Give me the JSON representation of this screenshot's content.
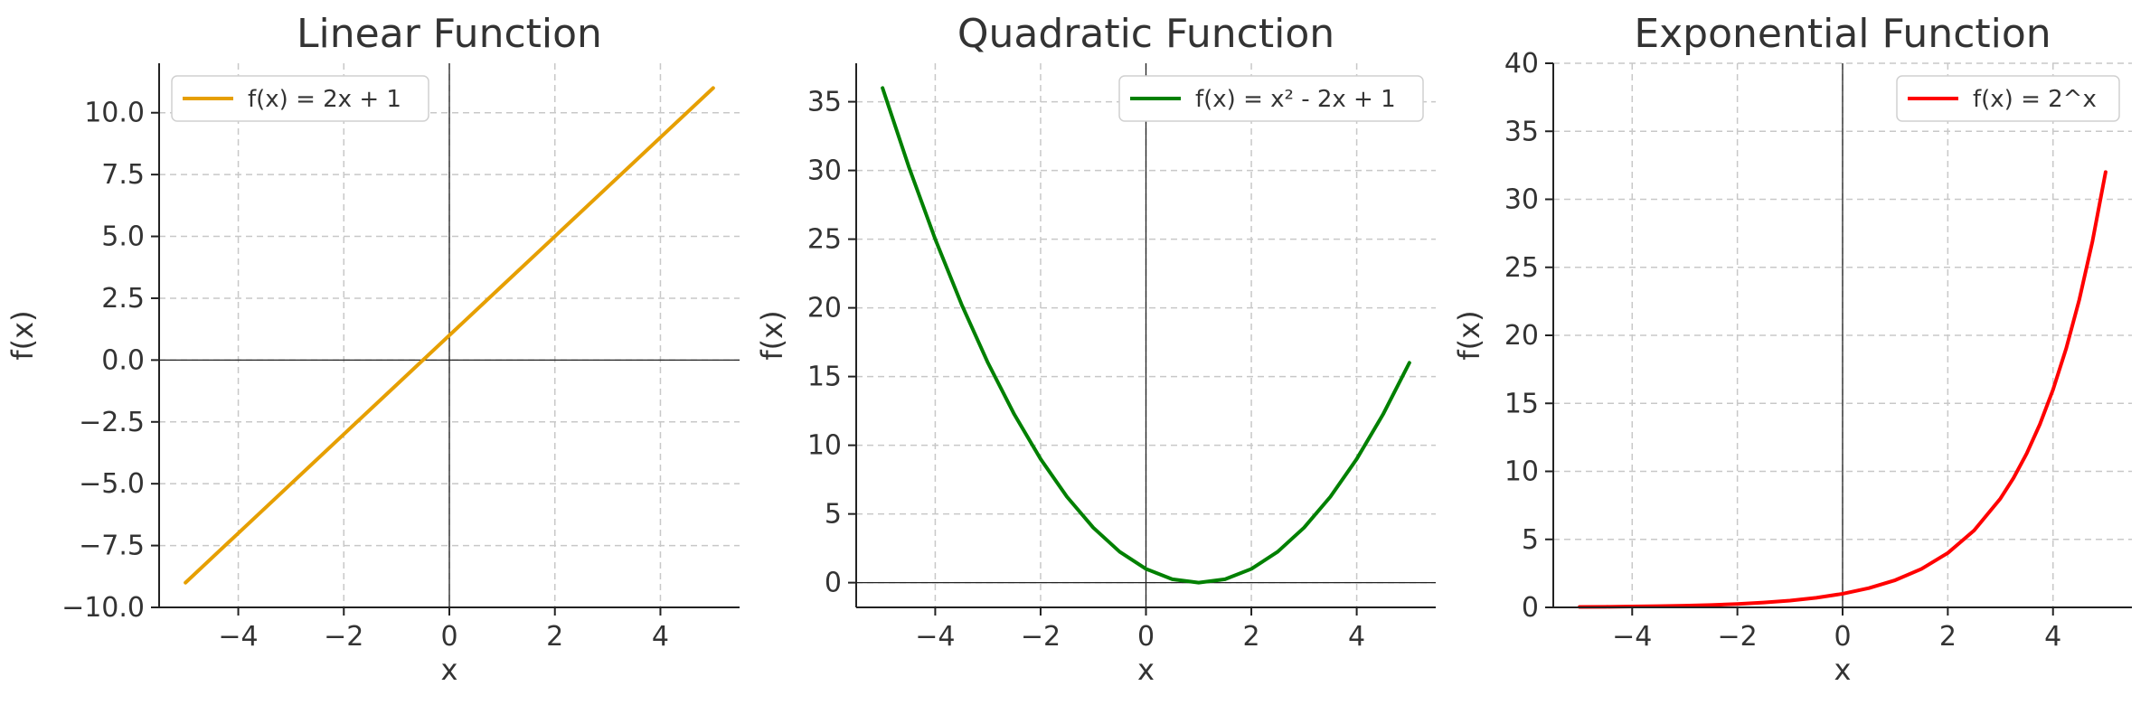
{
  "chart_data": [
    {
      "type": "line",
      "title": "Linear Function",
      "xlabel": "x",
      "ylabel": "f(x)",
      "xlim": [
        -5.5,
        5.5
      ],
      "ylim": [
        -10,
        12
      ],
      "xticks": [
        -4,
        -2,
        0,
        2,
        4
      ],
      "xtick_labels": [
        "−4",
        "−2",
        "0",
        "2",
        "4"
      ],
      "yticks": [
        -10,
        -7.5,
        -5,
        -2.5,
        0,
        2.5,
        5,
        7.5,
        10
      ],
      "ytick_labels": [
        "−10.0",
        "−7.5",
        "−5.0",
        "−2.5",
        "0.0",
        "2.5",
        "5.0",
        "7.5",
        "10.0"
      ],
      "grid": true,
      "legend_position": "top-left",
      "series": [
        {
          "name": "f(x) = 2x + 1",
          "color": "#e69f00",
          "x": [
            -5,
            -4,
            -3,
            -2,
            -1,
            0,
            1,
            2,
            3,
            4,
            5
          ],
          "y": [
            -9,
            -7,
            -5,
            -3,
            -1,
            1,
            3,
            5,
            7,
            9,
            11
          ]
        }
      ]
    },
    {
      "type": "line",
      "title": "Quadratic Function",
      "xlabel": "x",
      "ylabel": "f(x)",
      "xlim": [
        -5.5,
        5.5
      ],
      "ylim": [
        -1.8,
        37.8
      ],
      "xticks": [
        -4,
        -2,
        0,
        2,
        4
      ],
      "xtick_labels": [
        "−4",
        "−2",
        "0",
        "2",
        "4"
      ],
      "yticks": [
        0,
        5,
        10,
        15,
        20,
        25,
        30,
        35
      ],
      "ytick_labels": [
        "0",
        "5",
        "10",
        "15",
        "20",
        "25",
        "30",
        "35"
      ],
      "grid": true,
      "legend_position": "top-right",
      "series": [
        {
          "name": "f(x) = x² - 2x + 1",
          "color": "#008000",
          "x": [
            -5,
            -4.5,
            -4,
            -3.5,
            -3,
            -2.5,
            -2,
            -1.5,
            -1,
            -0.5,
            0,
            0.5,
            1,
            1.5,
            2,
            2.5,
            3,
            3.5,
            4,
            4.5,
            5
          ],
          "y": [
            36,
            30.25,
            25,
            20.25,
            16,
            12.25,
            9,
            6.25,
            4,
            2.25,
            1,
            0.25,
            0,
            0.25,
            1,
            2.25,
            4,
            6.25,
            9,
            12.25,
            16
          ]
        }
      ]
    },
    {
      "type": "line",
      "title": "Exponential Function",
      "xlabel": "x",
      "ylabel": "f(x)",
      "xlim": [
        -5.5,
        5.5
      ],
      "ylim": [
        0,
        40
      ],
      "xticks": [
        -4,
        -2,
        0,
        2,
        4
      ],
      "xtick_labels": [
        "−4",
        "−2",
        "0",
        "2",
        "4"
      ],
      "yticks": [
        0,
        5,
        10,
        15,
        20,
        25,
        30,
        35,
        40
      ],
      "ytick_labels": [
        "0",
        "5",
        "10",
        "15",
        "20",
        "25",
        "30",
        "35",
        "40"
      ],
      "grid": true,
      "legend_position": "top-right",
      "series": [
        {
          "name": "f(x) = 2^x",
          "color": "#ff0000",
          "x": [
            -5,
            -4.5,
            -4,
            -3.5,
            -3,
            -2.5,
            -2,
            -1.5,
            -1,
            -0.5,
            0,
            0.5,
            1,
            1.5,
            2,
            2.5,
            3,
            3.25,
            3.5,
            3.75,
            4,
            4.25,
            4.5,
            4.75,
            5
          ],
          "y": [
            0.03125,
            0.0442,
            0.0625,
            0.0884,
            0.125,
            0.1768,
            0.25,
            0.3536,
            0.5,
            0.7071,
            1,
            1.4142,
            2,
            2.8284,
            4,
            5.6569,
            8,
            9.5137,
            11.3137,
            13.4543,
            16,
            19.0273,
            22.6274,
            26.9087,
            32
          ]
        }
      ]
    }
  ]
}
